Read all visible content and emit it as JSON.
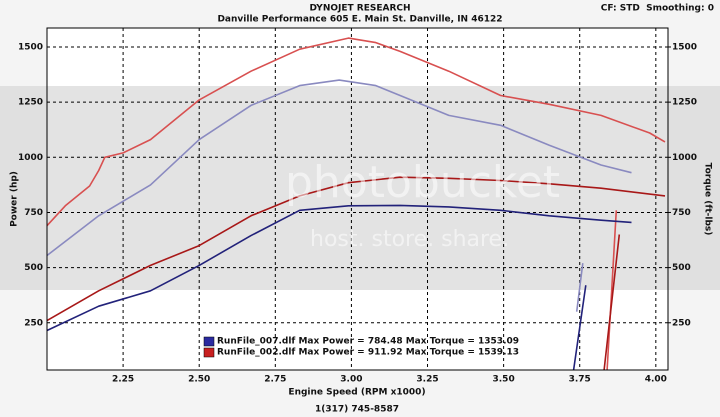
{
  "chart_data": {
    "type": "line",
    "header": "DYNOJET RESEARCH",
    "title": "Danville Performance 605 E. Main St. Danville, IN 46122",
    "settings_text": "CF: STD  Smoothing: 0",
    "footer": "1(317) 745-8587",
    "watermark": "photobucket",
    "watermark_sub": "host. store. share.",
    "xlabel": "Engine Speed (RPM x1000)",
    "ylabel": "Power (hp)",
    "y2label": "Torque (ft-lbs)",
    "xlim": [
      2.0,
      4.04
    ],
    "ylim": [
      36,
      1586
    ],
    "y2lim": [
      36,
      1586
    ],
    "xticks": [
      {
        "value": 2.25,
        "label": "2.25"
      },
      {
        "value": 2.5,
        "label": "2.50"
      },
      {
        "value": 2.75,
        "label": "2.75"
      },
      {
        "value": 3.0,
        "label": "3.00"
      },
      {
        "value": 3.25,
        "label": "3.25"
      },
      {
        "value": 3.5,
        "label": "3.50"
      },
      {
        "value": 3.75,
        "label": "3.75"
      },
      {
        "value": 4.0,
        "label": "4.00"
      }
    ],
    "yticks": [
      250,
      500,
      750,
      1000,
      1250,
      1500
    ],
    "y2ticks": [
      250,
      500,
      750,
      1000,
      1250,
      1500
    ],
    "grid": true,
    "legend": [
      {
        "label": "RunFile_007.dlf Max Power = 784.48 Max Torque = 1353.09",
        "color": "#2a2aa0"
      },
      {
        "label": "RunFile_002.dlf Max Power = 911.92 Max Torque = 1539.13",
        "color": "#c82020"
      }
    ],
    "series": [
      {
        "color": "#d85050",
        "axis": "y2",
        "x": [
          2.0,
          2.06,
          2.14,
          2.17,
          2.19,
          2.25,
          2.34,
          2.5,
          2.67,
          2.83,
          2.99,
          3.08,
          3.16,
          3.32,
          3.49,
          3.65,
          3.82,
          3.98,
          4.03,
          null,
          3.84,
          3.87
        ],
        "values": [
          690,
          780,
          870,
          940,
          1000,
          1020,
          1080,
          1260,
          1390,
          1490,
          1540,
          1520,
          1480,
          1390,
          1280,
          1240,
          1190,
          1110,
          1070,
          null,
          36,
          760
        ]
      },
      {
        "color": "#8a8ac0",
        "axis": "y2",
        "x": [
          2.0,
          2.17,
          2.34,
          2.5,
          2.67,
          2.83,
          2.96,
          3.08,
          3.16,
          3.32,
          3.49,
          3.65,
          3.82,
          3.92,
          null,
          3.74,
          3.76
        ],
        "values": [
          555,
          735,
          875,
          1080,
          1235,
          1325,
          1350,
          1325,
          1280,
          1190,
          1145,
          1055,
          965,
          930,
          null,
          300,
          520
        ]
      },
      {
        "color": "#a81818",
        "x": [
          2.0,
          2.17,
          2.34,
          2.5,
          2.67,
          2.83,
          2.99,
          3.16,
          3.32,
          3.49,
          3.65,
          3.82,
          4.03,
          null,
          3.83,
          3.88
        ],
        "values": [
          260,
          395,
          510,
          600,
          735,
          825,
          885,
          910,
          905,
          895,
          880,
          860,
          825,
          null,
          36,
          650
        ]
      },
      {
        "color": "#22227a",
        "x": [
          2.0,
          2.17,
          2.34,
          2.5,
          2.67,
          2.83,
          2.99,
          3.16,
          3.32,
          3.49,
          3.65,
          3.82,
          3.92,
          null,
          3.73,
          3.77
        ],
        "values": [
          215,
          325,
          395,
          510,
          645,
          760,
          780,
          782,
          775,
          760,
          735,
          715,
          705,
          null,
          36,
          420
        ]
      }
    ]
  }
}
